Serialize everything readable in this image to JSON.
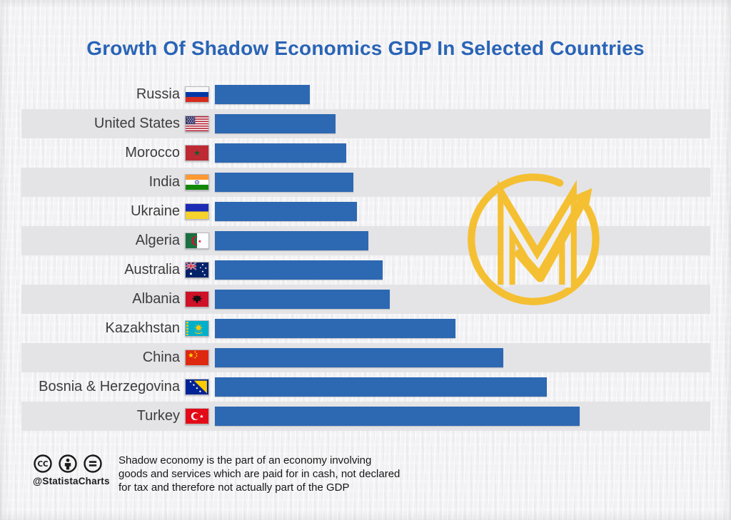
{
  "title": "Growth Of Shadow Economics GDP In Selected Countries",
  "chart_data": {
    "type": "bar",
    "orientation": "horizontal",
    "title": "Growth Of Shadow Economics GDP In Selected Countries",
    "categories": [
      "Russia",
      "United States",
      "Morocco",
      "India",
      "Ukraine",
      "Algeria",
      "Australia",
      "Albania",
      "Kazakhstan",
      "China",
      "Bosnia & Herzegovina",
      "Turkey"
    ],
    "values": [
      26,
      33,
      36,
      38,
      39,
      42,
      46,
      48,
      66,
      79,
      91,
      100
    ],
    "values_note": "No numeric axis, gridlines or data labels are shown in the image; values are relative bar lengths scaled so the longest bar (Turkey) = 100",
    "xlabel": "",
    "ylabel": "",
    "xlim": [
      0,
      100
    ],
    "grid": false,
    "legend": null,
    "bar_color": "#2d68b2",
    "row_stripe_color": "#e4e4e7",
    "flag_icons": [
      "flag-russia",
      "flag-united-states",
      "flag-morocco",
      "flag-india",
      "flag-ukraine",
      "flag-algeria",
      "flag-australia",
      "flag-albania",
      "flag-kazakhstan",
      "flag-china",
      "flag-bosnia-herzegovina",
      "flag-turkey"
    ]
  },
  "logo": {
    "icon": "m-growth-arrow-logo",
    "color": "#F5BE2B"
  },
  "footer": {
    "license_icons": [
      "cc-icon",
      "attribution-person-icon",
      "no-derivatives-equals-icon"
    ],
    "handle": "@StatistaCharts",
    "note_line1": "Shadow economy is the part of an economy involving",
    "note_line2": "goods and services which are paid for in cash, not declared",
    "note_line3": "for tax and therefore not actually part of the GDP"
  },
  "colors": {
    "background": "#f2f2f4",
    "title_text": "#2a64b6",
    "label_text": "#3c3c3c"
  }
}
